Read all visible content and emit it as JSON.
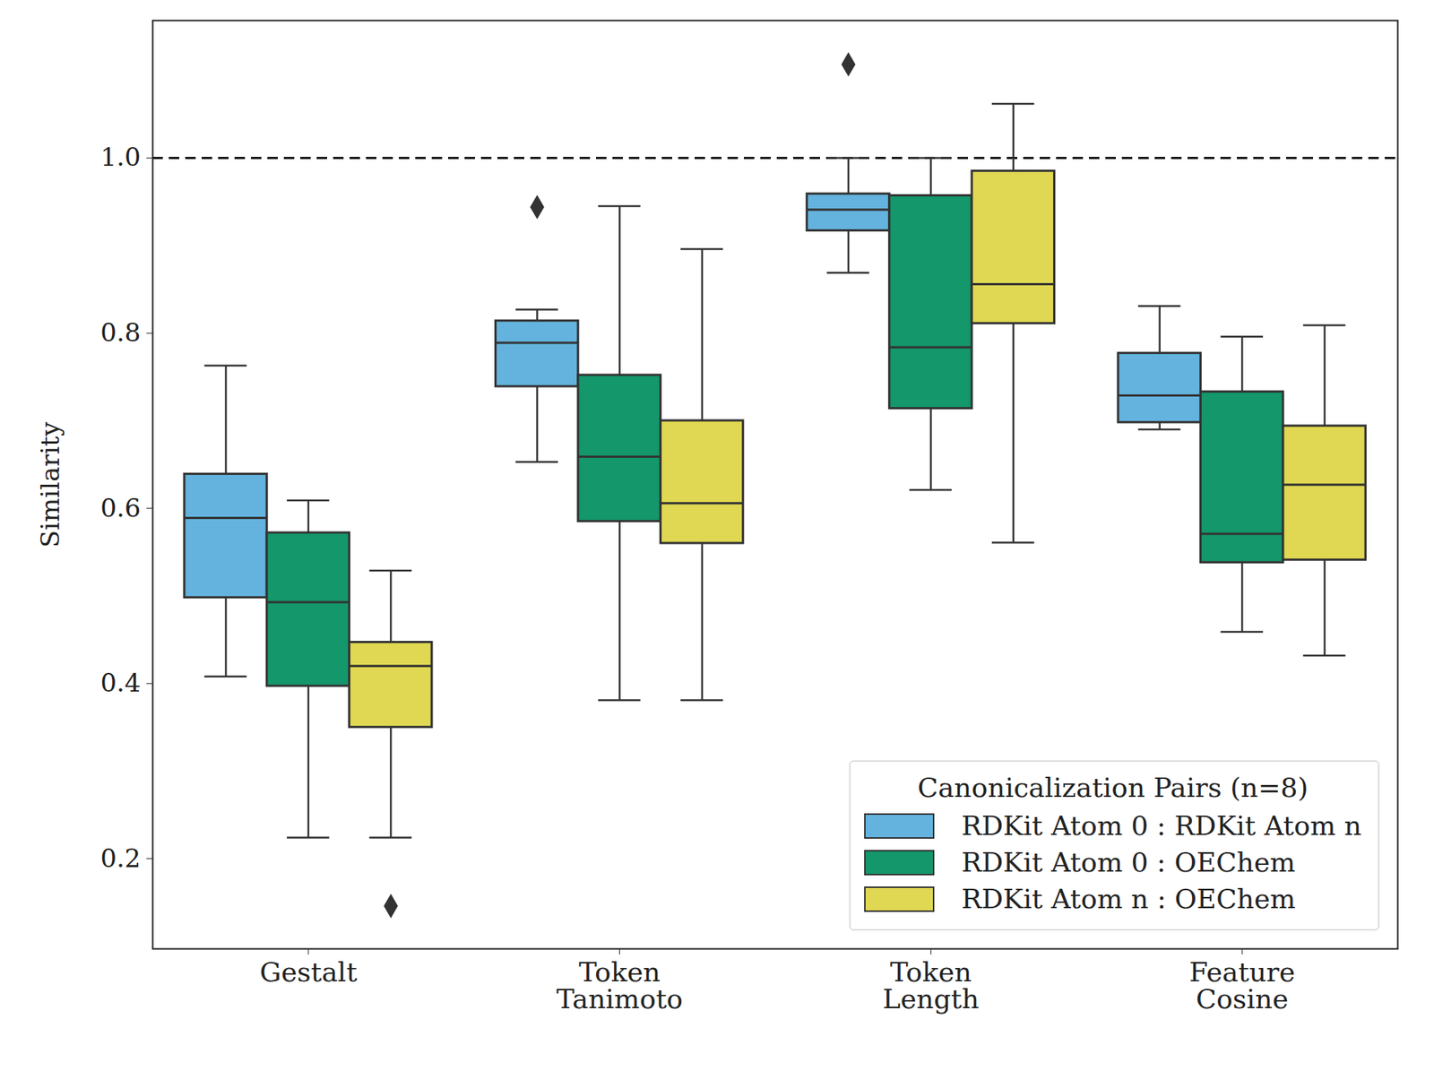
{
  "chart_data": {
    "type": "box",
    "y_label": "Similarity",
    "categories": [
      "Gestalt",
      "Token Tanimoto",
      "Token Length",
      "Feature Cosine"
    ],
    "ylim": [
      0.097,
      1.157
    ],
    "yticks": [
      0.2,
      0.4,
      0.6,
      0.8,
      {
        "value": 1,
        "label": "1.0"
      }
    ],
    "reference_line": {
      "value": 1,
      "line_style": "dashed"
    },
    "legend": "lower right",
    "legend_title": "Canonicalization Pairs (n=8)",
    "series": [
      {
        "name": "RDKit Atom 0 : RDKit Atom n",
        "color": "#63b3de",
        "whisker_low": [
          0.408,
          0.653,
          0.869,
          0.69
        ],
        "q1": [
          0.498,
          0.739,
          0.917,
          0.698
        ],
        "median": [
          0.589,
          0.789,
          0.941,
          0.729
        ],
        "q3": [
          0.639,
          0.814,
          0.959,
          0.777
        ],
        "whisker_high": [
          0.763,
          0.827,
          1.0,
          0.831
        ],
        "outliers": [
          [],
          [
            0.944
          ],
          [
            1.107
          ],
          []
        ]
      },
      {
        "name": "RDKit Atom 0 : OEChem",
        "color": "#13976b",
        "whisker_low": [
          0.224,
          0.381,
          0.621,
          0.459
        ],
        "q1": [
          0.397,
          0.585,
          0.714,
          0.538
        ],
        "median": [
          0.493,
          0.659,
          0.784,
          0.571
        ],
        "q3": [
          0.572,
          0.752,
          0.957,
          0.733
        ],
        "whisker_high": [
          0.609,
          0.945,
          1.0,
          0.796
        ],
        "outliers": [
          [],
          [],
          [],
          []
        ]
      },
      {
        "name": "RDKit Atom n : OEChem",
        "color": "#e0d852",
        "whisker_low": [
          0.224,
          0.381,
          0.561,
          0.432
        ],
        "q1": [
          0.35,
          0.56,
          0.811,
          0.541
        ],
        "median": [
          0.42,
          0.606,
          0.856,
          0.627
        ],
        "q3": [
          0.447,
          0.7,
          0.985,
          0.694
        ],
        "whisker_high": [
          0.529,
          0.896,
          1.062,
          0.809
        ],
        "outliers": [
          [
            0.146
          ],
          [],
          [],
          []
        ]
      }
    ]
  }
}
